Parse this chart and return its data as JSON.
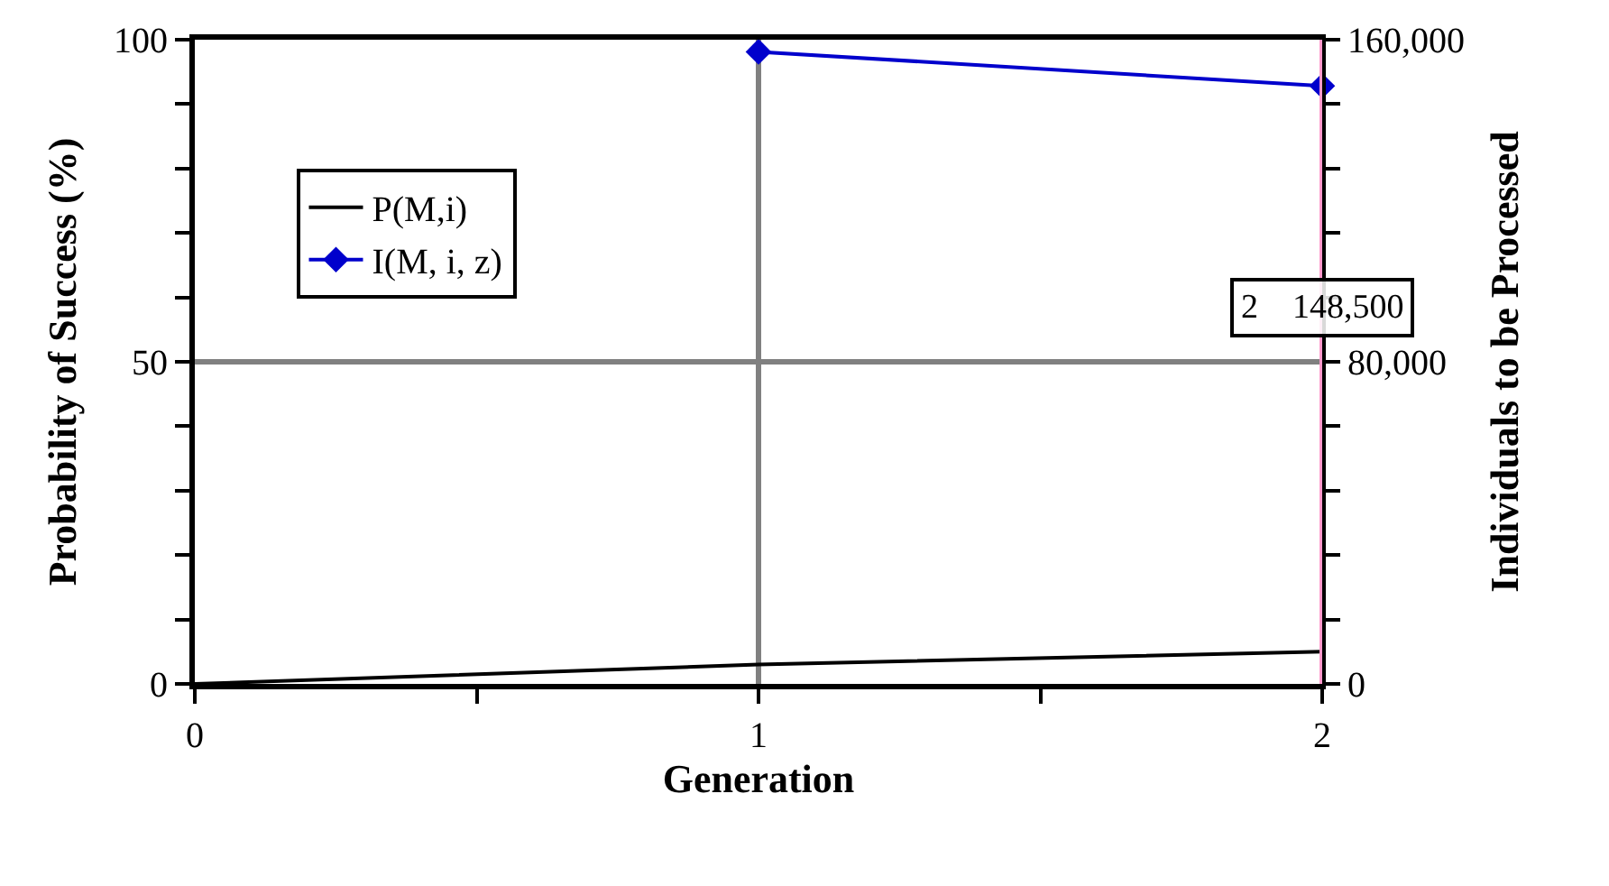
{
  "chart_data": {
    "type": "line",
    "xlabel": "Generation",
    "ylabel": "Probability of Success (%)",
    "y2label": "Individuals to be Processed",
    "x": [
      0,
      1,
      2
    ],
    "series": [
      {
        "name": "P(M,i)",
        "color": "#000000",
        "values": [
          0,
          3,
          5
        ],
        "marker": "none"
      },
      {
        "name": "I(M, i, z)",
        "color": "#0000cc",
        "values": [
          null,
          157000,
          148500
        ],
        "axis": "y2",
        "marker": "diamond"
      }
    ],
    "xlim": [
      0,
      2
    ],
    "xticks": [
      0,
      {
        "value": 0.5,
        "label": null
      },
      1,
      {
        "value": 1.5,
        "label": null
      },
      2
    ],
    "ylim": [
      0,
      100
    ],
    "yticks": [
      0,
      {
        "value": 10,
        "label": null
      },
      {
        "value": 20,
        "label": null
      },
      {
        "value": 30,
        "label": null
      },
      {
        "value": 40,
        "label": null
      },
      50,
      {
        "value": 60,
        "label": null
      },
      {
        "value": 70,
        "label": null
      },
      {
        "value": 80,
        "label": null
      },
      {
        "value": 90,
        "label": null
      },
      100
    ],
    "y2lim": [
      0,
      160000
    ],
    "y2ticks": [
      {
        "value": 0,
        "label": "0"
      },
      {
        "value": 16000,
        "label": null
      },
      {
        "value": 32000,
        "label": null
      },
      {
        "value": 48000,
        "label": null
      },
      {
        "value": 64000,
        "label": null
      },
      {
        "value": 80000,
        "label": "80,000"
      },
      {
        "value": 96000,
        "label": null
      },
      {
        "value": 112000,
        "label": null
      },
      {
        "value": 128000,
        "label": null
      },
      {
        "value": 144000,
        "label": null
      },
      {
        "value": 160000,
        "label": "160,000"
      }
    ],
    "ref_lines": [
      {
        "axis": "x",
        "value": 2,
        "color": "#ff99cc"
      }
    ],
    "annotations": [
      "2    148,500"
    ],
    "grid": "major",
    "legend": "top left",
    "line_style": "solid"
  }
}
